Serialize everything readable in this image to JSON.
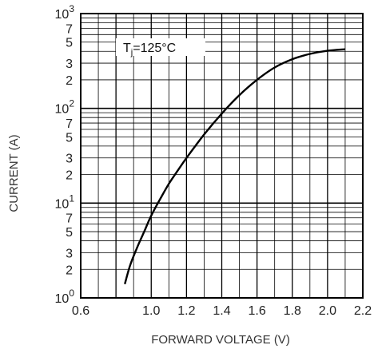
{
  "chart_data": {
    "type": "line",
    "xlabel": "FORWARD VOLTAGE (V)",
    "ylabel": "CURRENT (A)",
    "xlim": [
      0.6,
      2.2
    ],
    "ylim": [
      1,
      1000
    ],
    "yscale": "log",
    "grid": true,
    "x_ticks": [
      "0.6",
      "1.0",
      "1.2",
      "1.4",
      "1.6",
      "1.8",
      "2.0",
      "2.2"
    ],
    "y_decade_labels": [
      {
        "value": 1,
        "base": "10",
        "exp": "0"
      },
      {
        "value": 10,
        "base": "10",
        "exp": "1"
      },
      {
        "value": 100,
        "base": "10",
        "exp": "2"
      },
      {
        "value": 1000,
        "base": "10",
        "exp": "3"
      }
    ],
    "y_minor_labels": [
      "2",
      "3",
      "5",
      "7"
    ],
    "annotation": {
      "prefix": "T",
      "sub": "j",
      "suffix": "=125°C"
    },
    "series": [
      {
        "x": [
          0.85,
          0.88,
          0.92,
          0.96,
          1.0,
          1.05,
          1.1,
          1.15,
          1.2,
          1.3,
          1.4,
          1.5,
          1.6,
          1.7,
          1.8,
          1.9,
          2.0,
          2.1
        ],
        "y": [
          1.4,
          2.2,
          3.4,
          5.0,
          7.4,
          11,
          16,
          22,
          30,
          53,
          88,
          138,
          200,
          270,
          330,
          375,
          405,
          420
        ],
        "color": "#000000"
      }
    ]
  }
}
